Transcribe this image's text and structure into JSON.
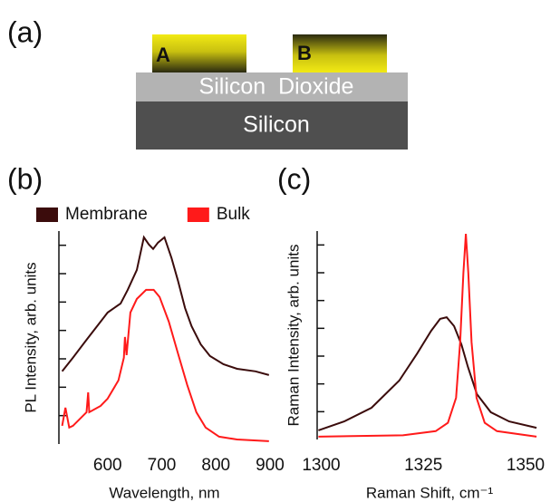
{
  "panel_labels": [
    "(a)",
    "(b)",
    "(c)"
  ],
  "diagram": {
    "contacts": [
      "A",
      "B"
    ],
    "layers": [
      "Silicon  Dioxide",
      "Silicon"
    ]
  },
  "chart_data": [
    {
      "type": "line",
      "xlabel": "Wavelength, nm",
      "ylabel": "PL Intensity, arb. units",
      "xlim": [
        510,
        900
      ],
      "xticks": [
        600,
        700,
        800,
        900
      ],
      "ylim": [
        0,
        7.5
      ],
      "yticks": [
        1,
        2,
        3,
        4,
        5,
        6,
        7
      ],
      "legend": "top",
      "series": [
        {
          "name": "Membrane",
          "color": "#3b0c0c",
          "x": [
            516,
            536,
            561,
            587,
            600,
            612,
            624,
            637,
            654,
            667,
            676,
            684,
            693,
            705,
            718,
            730,
            743,
            755,
            772,
            789,
            814,
            839,
            873,
            898
          ],
          "values": [
            2.56,
            3.04,
            3.67,
            4.31,
            4.63,
            4.79,
            4.95,
            5.43,
            6.13,
            7.28,
            7.03,
            6.87,
            7.09,
            7.28,
            6.55,
            5.75,
            4.79,
            4.15,
            3.51,
            3.1,
            2.81,
            2.65,
            2.56,
            2.43
          ]
        },
        {
          "name": "Bulk",
          "color": "#ff1a1a",
          "x": [
            516,
            522,
            529,
            536,
            561,
            564,
            566,
            587,
            600,
            620,
            630,
            632,
            635,
            642,
            654,
            671,
            685,
            696,
            713,
            730,
            747,
            764,
            781,
            806,
            839,
            898
          ],
          "values": [
            0.64,
            1.28,
            0.58,
            0.64,
            1.12,
            1.82,
            1.12,
            1.34,
            1.6,
            2.24,
            3.04,
            3.77,
            3.13,
            4.63,
            5.11,
            5.43,
            5.43,
            5.18,
            4.31,
            3.19,
            2.08,
            1.12,
            0.58,
            0.26,
            0.16,
            0.1
          ]
        }
      ]
    },
    {
      "type": "line",
      "xlabel": "Raman Shift, cm⁻¹",
      "ylabel": "Raman Intensity, arb. units",
      "xlim": [
        1299,
        1354
      ],
      "xticks": [
        1300,
        1325,
        1350
      ],
      "ylim": [
        0,
        7.5
      ],
      "yticks": [
        1,
        2,
        3,
        4,
        5,
        6,
        7
      ],
      "series": [
        {
          "color": "#3b0c0c",
          "x": [
            1299.3,
            1305.6,
            1312.3,
            1319.1,
            1323.5,
            1326.9,
            1329.1,
            1330.7,
            1332.5,
            1334.3,
            1335.9,
            1338.1,
            1341.5,
            1346.0,
            1352.7
          ],
          "values": [
            0.33,
            0.65,
            1.14,
            2.12,
            3.1,
            3.91,
            4.34,
            4.4,
            4.08,
            3.42,
            2.61,
            1.63,
            0.98,
            0.65,
            0.42
          ]
        },
        {
          "color": "#ff1a1a",
          "x": [
            1299.3,
            1320,
            1328,
            1331,
            1333,
            1334,
            1334.8,
            1335.4,
            1336,
            1336.8,
            1338,
            1340,
            1343,
            1352.7
          ],
          "values": [
            0.1,
            0.15,
            0.3,
            0.6,
            1.5,
            3.5,
            6.0,
            7.4,
            6.0,
            3.5,
            1.5,
            0.6,
            0.3,
            0.1
          ]
        }
      ]
    }
  ]
}
